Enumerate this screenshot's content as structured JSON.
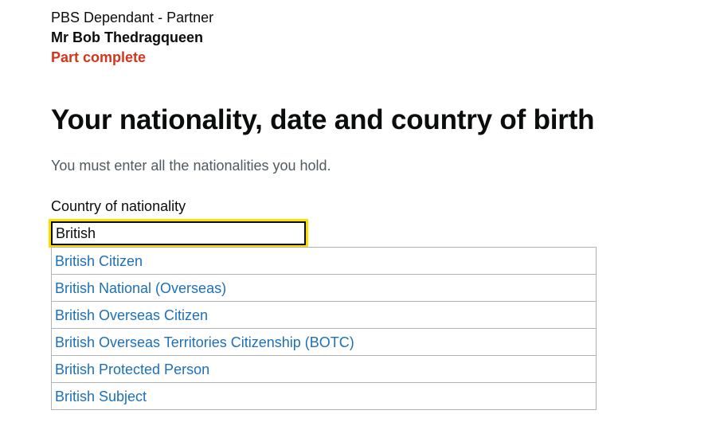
{
  "applicant": {
    "type": "PBS Dependant - Partner",
    "name": "Mr Bob Thedragqueen",
    "status": "Part complete"
  },
  "page": {
    "title": "Your nationality, date and country of birth",
    "hint": "You must enter all the nationalities you hold."
  },
  "nationality_field": {
    "label": "Country of nationality",
    "value": "British"
  },
  "suggestions": [
    "British Citizen",
    "British National (Overseas)",
    "British Overseas Citizen",
    "British Overseas Territories Citizenship (BOTC)",
    "British Protected Person",
    "British Subject"
  ],
  "colors": {
    "text": "#0b0c0c",
    "status_red": "#d4351c",
    "hint_grey": "#505a5f",
    "link_blue": "#1d70b8",
    "focus_yellow": "#ffdd00",
    "border_grey": "#b1b4b6"
  }
}
